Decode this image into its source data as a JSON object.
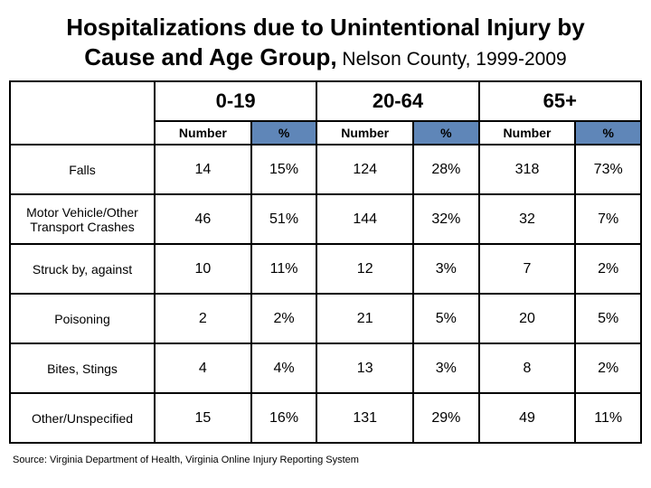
{
  "title_line1": "Hospitalizations due to Unintentional Injury by",
  "title_line2_bold": "Cause and Age Group,",
  "title_line2_sub": " Nelson County, 1999-2009",
  "table": {
    "age_groups": [
      "0-19",
      "20-64",
      "65+"
    ],
    "sub_headers": {
      "number": "Number",
      "percent": "%"
    },
    "columns": [
      {
        "key": "rowlabel",
        "type": "label",
        "width": 160
      },
      {
        "key": "g1n",
        "type": "num"
      },
      {
        "key": "g1p",
        "type": "pct"
      },
      {
        "key": "g2n",
        "type": "num"
      },
      {
        "key": "g2p",
        "type": "pct"
      },
      {
        "key": "g3n",
        "type": "num"
      },
      {
        "key": "g3p",
        "type": "pct"
      }
    ],
    "rows": [
      {
        "label": "Falls",
        "g1n": "14",
        "g1p": "15%",
        "g2n": "124",
        "g2p": "28%",
        "g3n": "318",
        "g3p": "73%"
      },
      {
        "label": "Motor Vehicle/Other Transport Crashes",
        "g1n": "46",
        "g1p": "51%",
        "g2n": "144",
        "g2p": "32%",
        "g3n": "32",
        "g3p": "7%"
      },
      {
        "label": "Struck by, against",
        "g1n": "10",
        "g1p": "11%",
        "g2n": "12",
        "g2p": "3%",
        "g3n": "7",
        "g3p": "2%"
      },
      {
        "label": "Poisoning",
        "g1n": "2",
        "g1p": "2%",
        "g2n": "21",
        "g2p": "5%",
        "g3n": "20",
        "g3p": "5%"
      },
      {
        "label": "Bites, Stings",
        "g1n": "4",
        "g1p": "4%",
        "g2n": "13",
        "g2p": "3%",
        "g3n": "8",
        "g3p": "2%"
      },
      {
        "label": "Other/Unspecified",
        "g1n": "15",
        "g1p": "16%",
        "g2n": "131",
        "g2p": "29%",
        "g3n": "49",
        "g3p": "11%"
      }
    ],
    "header_bg": "#5f86b8",
    "border_color": "#000000",
    "cell_bg": "#ffffff"
  },
  "source": "Source: Virginia Department of Health, Virginia Online Injury Reporting System"
}
